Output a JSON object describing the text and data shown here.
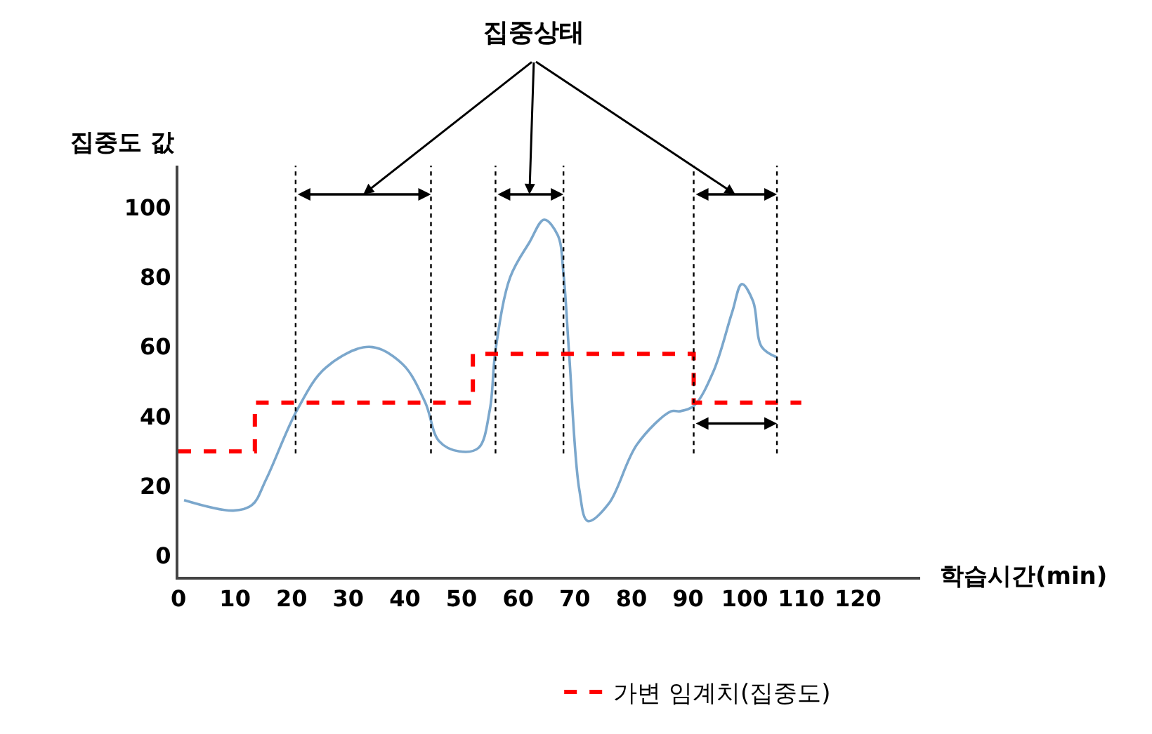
{
  "chart_data": {
    "type": "line",
    "title": "집중상태",
    "xlabel": "학습시간(min)",
    "ylabel": "집중도 값",
    "x": [
      1,
      9.7,
      13,
      15.5,
      21,
      26,
      33.7,
      39.6,
      43.6,
      46,
      49.6,
      53,
      55,
      56,
      58.6,
      62,
      64.6,
      67,
      68,
      69,
      70.8,
      72.3,
      76,
      81,
      87,
      88.5,
      91,
      94.5,
      97.8,
      99.5,
      101.5,
      103,
      105.7
    ],
    "series": [
      {
        "color": "#7ba7cc",
        "values": [
          16,
          13,
          14.6,
          22,
          42,
          54,
          60,
          55,
          44,
          33,
          30,
          31,
          42,
          59,
          80,
          90,
          96.5,
          92,
          81,
          58,
          19,
          10,
          15,
          32,
          41.5,
          41.5,
          43,
          53,
          70,
          78,
          73,
          60,
          57
        ]
      },
      {
        "name": "가변 임계치(집중도)",
        "type": "step",
        "line_style": "dashed",
        "color": "#ff0000",
        "x": [
          0,
          13.5,
          52,
          91,
          110
        ],
        "values": [
          30,
          44,
          58,
          44,
          44
        ]
      }
    ],
    "xlim": [
      0,
      131
    ],
    "ylim": [
      -6,
      112
    ],
    "xticks": [
      0,
      10,
      20,
      30,
      40,
      50,
      60,
      70,
      80,
      90,
      100,
      110,
      120
    ],
    "yticks": [
      0,
      20,
      40,
      60,
      80,
      100
    ],
    "ref_lines": [
      {
        "axis": "x",
        "value": 20.7,
        "color": "#000000",
        "line_style": "dotted"
      },
      {
        "axis": "x",
        "value": 44.6,
        "color": "#000000",
        "line_style": "dotted"
      },
      {
        "axis": "x",
        "value": 56,
        "color": "#000000",
        "line_style": "dotted"
      },
      {
        "axis": "x",
        "value": 68,
        "color": "#000000",
        "line_style": "dotted"
      },
      {
        "axis": "x",
        "value": 91,
        "color": "#000000",
        "line_style": "dotted"
      },
      {
        "axis": "x",
        "value": 105.7,
        "color": "#000000",
        "line_style": "dotted"
      }
    ],
    "legend": "bottom",
    "marker": "none"
  }
}
